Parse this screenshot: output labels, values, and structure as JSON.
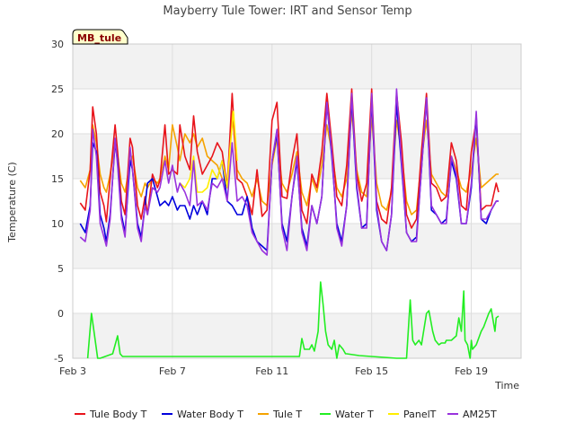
{
  "chart_data": {
    "type": "line",
    "title": "Mayberry Tule Tower: IRT and Sensor Temp",
    "xlabel": "Time",
    "ylabel": "Temperature (C)",
    "station_label": "MB_tule",
    "ylim": [
      -5,
      30
    ],
    "xlim": [
      3,
      21
    ],
    "yticks": [
      -5,
      0,
      5,
      10,
      15,
      20,
      25,
      30
    ],
    "xticks": [
      {
        "value": 3,
        "label": "Feb 3"
      },
      {
        "value": 7,
        "label": "Feb 7"
      },
      {
        "value": 11,
        "label": "Feb 11"
      },
      {
        "value": 15,
        "label": "Feb 15"
      },
      {
        "value": 19,
        "label": "Feb 19"
      }
    ],
    "band_ranges": [
      [
        -5,
        0
      ],
      [
        5,
        10
      ],
      [
        15,
        20
      ],
      [
        25,
        30
      ]
    ],
    "series": [
      {
        "name": "Tule Body T",
        "color": "#e8141b",
        "x": [
          3.3,
          3.5,
          3.7,
          3.8,
          3.95,
          4.1,
          4.25,
          4.35,
          4.5,
          4.7,
          4.8,
          4.95,
          5.1,
          5.3,
          5.4,
          5.6,
          5.75,
          5.9,
          6.0,
          6.2,
          6.4,
          6.5,
          6.7,
          6.85,
          7.0,
          7.2,
          7.3,
          7.5,
          7.7,
          7.85,
          8.0,
          8.2,
          8.4,
          8.6,
          8.8,
          9.0,
          9.2,
          9.4,
          9.6,
          9.8,
          10.0,
          10.2,
          10.4,
          10.6,
          10.8,
          11.0,
          11.2,
          11.4,
          11.6,
          11.8,
          12.0,
          12.2,
          12.4,
          12.6,
          12.8,
          13.0,
          13.2,
          13.4,
          13.6,
          13.8,
          14.0,
          14.2,
          14.4,
          14.6,
          14.8,
          15.0,
          15.2,
          15.4,
          15.6,
          15.8,
          16.0,
          16.2,
          16.4,
          16.6,
          16.8,
          17.0,
          17.2,
          17.4,
          17.6,
          17.8,
          18.0,
          18.2,
          18.4,
          18.6,
          18.8,
          19.0,
          19.2,
          19.4,
          19.6,
          19.8,
          20.0,
          20.1
        ],
        "values": [
          12.3,
          11.5,
          16.0,
          23.0,
          20.0,
          13.5,
          12.0,
          10.2,
          15.0,
          21.0,
          18.0,
          12.5,
          11.0,
          19.5,
          18.5,
          12.0,
          10.5,
          13.0,
          11.0,
          15.5,
          14.0,
          14.8,
          21.0,
          15.5,
          16.0,
          15.5,
          21.0,
          17.5,
          16.0,
          22.0,
          18.0,
          15.5,
          16.5,
          17.5,
          19.0,
          18.0,
          14.0,
          24.5,
          15.0,
          14.5,
          13.0,
          11.0,
          16.0,
          10.8,
          11.5,
          21.5,
          23.5,
          13.0,
          12.8,
          17.0,
          20.0,
          11.5,
          10.0,
          15.5,
          14.0,
          18.0,
          24.5,
          19.0,
          13.0,
          12.0,
          16.5,
          25.0,
          15.5,
          12.5,
          14.5,
          25.0,
          12.5,
          10.5,
          10.0,
          14.0,
          24.5,
          19.0,
          11.0,
          9.5,
          10.5,
          18.0,
          24.5,
          14.5,
          14.0,
          12.5,
          13.0,
          19.0,
          17.0,
          12.0,
          11.5,
          18.0,
          21.5,
          11.5,
          12.0,
          12.0,
          14.5,
          13.5
        ]
      },
      {
        "name": "Water Body T",
        "color": "#0000dd",
        "x": [
          3.3,
          3.5,
          3.7,
          3.8,
          3.95,
          4.1,
          4.25,
          4.35,
          4.5,
          4.7,
          4.8,
          4.95,
          5.1,
          5.3,
          5.4,
          5.6,
          5.75,
          5.9,
          6.0,
          6.2,
          6.4,
          6.5,
          6.7,
          6.85,
          7.0,
          7.2,
          7.3,
          7.5,
          7.7,
          7.85,
          8.0,
          8.2,
          8.4,
          8.6,
          8.8,
          9.0,
          9.2,
          9.4,
          9.6,
          9.8,
          10.0,
          10.2,
          10.4,
          10.6,
          10.8,
          11.0,
          11.2,
          11.4,
          11.6,
          11.8,
          12.0,
          12.2,
          12.4,
          12.6,
          12.8,
          13.0,
          13.2,
          13.4,
          13.6,
          13.8,
          14.0,
          14.2,
          14.4,
          14.6,
          14.8,
          15.0,
          15.2,
          15.4,
          15.6,
          15.8,
          16.0,
          16.2,
          16.4,
          16.6,
          16.8,
          17.0,
          17.2,
          17.4,
          17.6,
          17.8,
          18.0,
          18.2,
          18.4,
          18.6,
          18.8,
          19.0,
          19.2,
          19.4,
          19.6,
          19.8,
          20.0,
          20.1
        ],
        "values": [
          10.0,
          9.0,
          12.0,
          19.0,
          18.0,
          11.0,
          9.5,
          8.0,
          11.0,
          19.0,
          17.0,
          11.0,
          9.0,
          17.0,
          16.0,
          10.0,
          8.5,
          12.0,
          14.5,
          15.0,
          13.0,
          12.0,
          12.5,
          12.0,
          13.0,
          11.5,
          12.0,
          12.0,
          10.5,
          12.0,
          11.0,
          12.5,
          11.0,
          15.0,
          15.0,
          17.0,
          12.5,
          12.0,
          11.0,
          11.0,
          13.0,
          9.5,
          8.0,
          7.5,
          7.0,
          17.0,
          20.0,
          10.0,
          8.0,
          13.0,
          17.0,
          9.5,
          7.5,
          12.0,
          10.0,
          13.0,
          23.5,
          17.5,
          10.0,
          8.0,
          12.0,
          24.0,
          14.0,
          9.5,
          10.0,
          24.0,
          11.5,
          8.0,
          7.0,
          11.0,
          23.5,
          16.5,
          9.0,
          8.0,
          8.5,
          16.0,
          24.0,
          11.5,
          11.0,
          10.0,
          10.5,
          17.0,
          15.0,
          10.0,
          10.0,
          14.0,
          22.0,
          10.5,
          10.0,
          11.5,
          12.5,
          12.5
        ]
      },
      {
        "name": "Tule T",
        "color": "#f5a300",
        "x": [
          3.3,
          3.5,
          3.7,
          3.8,
          3.95,
          4.1,
          4.25,
          4.35,
          4.5,
          4.7,
          4.8,
          4.95,
          5.1,
          5.3,
          5.4,
          5.6,
          5.75,
          5.9,
          6.0,
          6.2,
          6.4,
          6.5,
          6.7,
          6.85,
          7.0,
          7.2,
          7.3,
          7.5,
          7.7,
          7.85,
          8.0,
          8.2,
          8.4,
          8.6,
          8.8,
          9.0,
          9.2,
          9.4,
          9.6,
          9.8,
          10.0,
          10.2,
          10.4,
          10.6,
          10.8,
          11.0,
          11.2,
          11.4,
          11.6,
          11.8,
          12.0,
          12.2,
          12.4,
          12.6,
          12.8,
          13.0,
          13.2,
          13.4,
          13.6,
          13.8,
          14.0,
          14.2,
          14.4,
          14.6,
          14.8,
          15.0,
          15.2,
          15.4,
          15.6,
          15.8,
          16.0,
          16.2,
          16.4,
          16.6,
          16.8,
          17.0,
          17.2,
          17.4,
          17.6,
          17.8,
          18.0,
          18.2,
          18.4,
          18.6,
          18.8,
          19.0,
          19.2,
          19.4,
          19.6,
          19.8,
          20.0,
          20.1
        ],
        "values": [
          14.8,
          14.0,
          16.0,
          21.0,
          19.0,
          15.5,
          14.0,
          13.5,
          15.5,
          19.0,
          17.5,
          14.5,
          13.5,
          17.0,
          17.5,
          14.0,
          13.0,
          14.5,
          14.0,
          15.0,
          14.5,
          15.0,
          17.5,
          16.0,
          21.0,
          18.5,
          17.0,
          20.0,
          19.0,
          20.0,
          18.5,
          19.5,
          17.5,
          17.0,
          16.5,
          15.0,
          14.5,
          22.5,
          16.0,
          15.0,
          14.5,
          13.0,
          15.0,
          12.5,
          12.0,
          16.5,
          19.5,
          14.5,
          13.5,
          15.5,
          18.0,
          13.5,
          12.0,
          15.0,
          13.5,
          16.5,
          21.0,
          18.0,
          14.0,
          13.0,
          15.0,
          22.5,
          16.0,
          13.5,
          13.0,
          22.0,
          14.5,
          12.0,
          11.5,
          13.5,
          21.5,
          18.0,
          12.5,
          11.0,
          11.5,
          17.0,
          21.5,
          15.5,
          14.5,
          13.5,
          13.0,
          17.5,
          16.0,
          14.0,
          13.5,
          16.0,
          19.5,
          14.0,
          14.5,
          15.0,
          15.5,
          15.5
        ]
      },
      {
        "name": "Water T",
        "color": "#22ee22",
        "x": [
          3.6,
          3.75,
          3.85,
          4.0,
          4.1,
          4.6,
          4.8,
          4.9,
          5.0,
          6.0,
          8.0,
          10.0,
          11.0,
          12.0,
          12.1,
          12.2,
          12.3,
          12.5,
          12.6,
          12.7,
          12.85,
          12.95,
          13.05,
          13.15,
          13.25,
          13.4,
          13.5,
          13.6,
          13.7,
          13.85,
          13.95,
          14.0,
          14.5,
          15.0,
          16.0,
          16.4,
          16.55,
          16.65,
          16.75,
          16.9,
          17.0,
          17.2,
          17.3,
          17.45,
          17.55,
          17.7,
          17.8,
          17.95,
          18.0,
          18.2,
          18.4,
          18.5,
          18.6,
          18.7,
          18.75,
          18.85,
          18.95,
          19.0,
          19.05,
          19.2,
          19.4,
          19.5,
          19.7,
          19.8,
          19.95,
          20.0,
          20.1
        ],
        "values": [
          -5.0,
          0.0,
          -2.0,
          -5.0,
          -5.0,
          -4.5,
          -2.5,
          -4.5,
          -4.8,
          -4.8,
          -4.8,
          -4.8,
          -4.8,
          -4.8,
          -4.8,
          -2.8,
          -4.0,
          -4.0,
          -3.5,
          -4.2,
          -2.0,
          3.5,
          1.0,
          -2.0,
          -3.5,
          -4.0,
          -3.0,
          -5.0,
          -3.5,
          -4.0,
          -4.5,
          -4.5,
          -4.7,
          -4.8,
          -5.0,
          -5.0,
          1.5,
          -3.0,
          -3.5,
          -3.0,
          -3.5,
          0.0,
          0.3,
          -2.0,
          -3.0,
          -3.5,
          -3.3,
          -3.3,
          -3.0,
          -3.0,
          -2.5,
          -0.5,
          -2.0,
          2.5,
          -3.0,
          -3.5,
          -5.0,
          -3.0,
          -4.0,
          -3.5,
          -2.0,
          -1.5,
          0.0,
          0.5,
          -2.0,
          -0.5,
          -0.3
        ]
      },
      {
        "name": "PanelT",
        "color": "#ffee00",
        "x": [
          7.3,
          7.5,
          7.7,
          7.85,
          8.0,
          8.2,
          8.4,
          8.6,
          8.8,
          9.0,
          9.2,
          9.3,
          9.45,
          9.6
        ],
        "values": [
          14.5,
          14.0,
          15.0,
          17.5,
          13.5,
          13.5,
          14.0,
          16.0,
          15.0,
          17.0,
          14.0,
          18.0,
          22.5,
          17.0
        ]
      },
      {
        "name": "AM25T",
        "color": "#9933dd",
        "x": [
          3.3,
          3.5,
          3.7,
          3.8,
          3.95,
          4.1,
          4.25,
          4.35,
          4.5,
          4.7,
          4.8,
          4.95,
          5.1,
          5.3,
          5.4,
          5.6,
          5.75,
          5.9,
          6.0,
          6.2,
          6.4,
          6.5,
          6.7,
          6.85,
          7.0,
          7.2,
          7.3,
          7.5,
          7.7,
          7.85,
          8.0,
          8.2,
          8.4,
          8.6,
          8.8,
          9.0,
          9.2,
          9.4,
          9.6,
          9.8,
          10.0,
          10.2,
          10.4,
          10.6,
          10.8,
          11.0,
          11.2,
          11.4,
          11.6,
          11.8,
          12.0,
          12.2,
          12.4,
          12.6,
          12.8,
          13.0,
          13.2,
          13.4,
          13.6,
          13.8,
          14.0,
          14.2,
          14.4,
          14.6,
          14.8,
          15.0,
          15.2,
          15.4,
          15.6,
          15.8,
          16.0,
          16.2,
          16.4,
          16.6,
          16.8,
          17.0,
          17.2,
          17.4,
          17.6,
          17.8,
          18.0,
          18.2,
          18.4,
          18.6,
          18.8,
          19.0,
          19.2,
          19.4,
          19.6,
          19.8,
          20.0,
          20.1
        ],
        "values": [
          8.5,
          8.0,
          11.5,
          20.5,
          17.5,
          10.0,
          8.5,
          7.5,
          10.5,
          19.5,
          16.5,
          10.5,
          8.5,
          18.5,
          16.0,
          9.5,
          8.0,
          12.0,
          11.0,
          14.0,
          13.5,
          14.0,
          17.0,
          14.5,
          16.5,
          13.5,
          14.5,
          13.5,
          12.0,
          17.0,
          12.0,
          12.5,
          11.5,
          14.5,
          14.0,
          15.0,
          12.5,
          19.0,
          12.5,
          13.0,
          12.0,
          9.0,
          8.0,
          7.0,
          6.5,
          17.0,
          20.5,
          9.5,
          7.0,
          13.0,
          17.5,
          9.0,
          7.0,
          12.0,
          10.0,
          13.0,
          23.5,
          18.0,
          9.5,
          7.5,
          12.0,
          24.5,
          14.5,
          9.5,
          9.5,
          24.5,
          12.0,
          8.0,
          7.0,
          11.0,
          25.0,
          17.0,
          9.0,
          8.0,
          8.0,
          16.0,
          24.0,
          12.0,
          11.0,
          10.0,
          10.0,
          17.5,
          15.5,
          10.0,
          10.0,
          14.5,
          22.5,
          10.5,
          10.5,
          11.5,
          12.5,
          12.5
        ]
      }
    ]
  }
}
